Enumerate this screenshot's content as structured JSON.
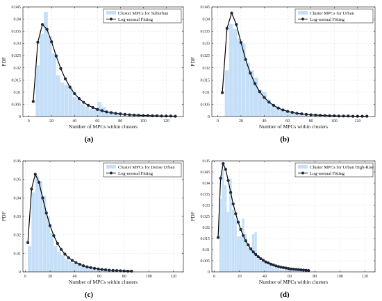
{
  "chart_data": [
    {
      "type": "bar+line",
      "caption": "(a)",
      "xlabel": "Number of MPCs within clusters",
      "ylabel": "PDF",
      "xlim": [
        -5,
        135
      ],
      "ylim": [
        0,
        0.045
      ],
      "xticks": [
        0,
        20,
        40,
        60,
        80,
        100,
        120
      ],
      "yticks": [
        0,
        0.005,
        0.01,
        0.015,
        0.02,
        0.025,
        0.03,
        0.035,
        0.04,
        0.045
      ],
      "grid": true,
      "legend_position": "top-right",
      "series": [
        {
          "name": "Cluster MPCs for Suburban",
          "kind": "hist",
          "bin_width": 3.6,
          "bin_starts": [
            2.5,
            6.1,
            9.7,
            13.3,
            16.9,
            20.5,
            24.1,
            27.7,
            31.3,
            34.9,
            38.5,
            42.1,
            45.7,
            49.3,
            52.9,
            56.5,
            60.1,
            63.7,
            67.3,
            70.9,
            74.5,
            78.1,
            81.7,
            85.3,
            88.9,
            92.5,
            96.1,
            99.7,
            103.3,
            106.9,
            110.5,
            114.1,
            117.7,
            121.3,
            124.9
          ],
          "values": [
            0.0,
            0.021,
            0.034,
            0.043,
            0.033,
            0.026,
            0.017,
            0.014,
            0.013,
            0.012,
            0.008,
            0.007,
            0.005,
            0.004,
            0.003,
            0.003,
            0.006,
            0.004,
            0.002,
            0.0015,
            0.001,
            0.001,
            0.0008,
            0.0006,
            0.0005,
            0.0004,
            0.0003,
            0.0003,
            0.0002,
            0.0002,
            0.0001,
            0.0001,
            0.0001,
            0.0001,
            0.0001
          ]
        },
        {
          "name": "Log-normal Fitting",
          "kind": "line",
          "x": [
            4,
            8,
            12,
            16,
            20,
            24,
            28,
            32,
            36,
            40,
            44,
            48,
            52,
            56,
            60,
            64,
            68,
            72,
            76,
            80,
            84,
            88,
            92,
            96,
            100,
            104,
            108,
            112,
            116,
            120,
            124,
            128
          ],
          "y": [
            0.0062,
            0.0305,
            0.0378,
            0.0358,
            0.0307,
            0.0249,
            0.0197,
            0.0155,
            0.0121,
            0.0094,
            0.0074,
            0.0058,
            0.0046,
            0.0037,
            0.0029,
            0.0024,
            0.0019,
            0.0016,
            0.0013,
            0.0011,
            0.0009,
            0.0007,
            0.0006,
            0.0005,
            0.0004,
            0.0004,
            0.0003,
            0.0003,
            0.0002,
            0.0002,
            0.0002,
            0.0001
          ]
        }
      ]
    },
    {
      "type": "bar+line",
      "caption": "(b)",
      "xlabel": "Number of MPCs within clusters",
      "ylabel": "PDF",
      "xlim": [
        -5,
        135
      ],
      "ylim": [
        0,
        0.045
      ],
      "xticks": [
        0,
        20,
        40,
        60,
        80,
        100,
        120
      ],
      "yticks": [
        0,
        0.005,
        0.01,
        0.015,
        0.02,
        0.025,
        0.03,
        0.035,
        0.04,
        0.045
      ],
      "grid": true,
      "legend_position": "top-right",
      "series": [
        {
          "name": "Cluster MPCs for Urban",
          "kind": "hist",
          "bin_width": 3.6,
          "bin_starts": [
            2.5,
            6.1,
            9.7,
            13.3,
            16.9,
            20.5,
            24.1,
            27.7,
            31.3,
            34.9,
            38.5,
            42.1,
            45.7,
            49.3,
            52.9,
            56.5,
            60.1,
            63.7,
            67.3,
            70.9,
            74.5,
            78.1,
            81.7,
            85.3,
            88.9,
            92.5,
            96.1,
            99.7,
            103.3,
            106.9,
            110.5,
            114.1,
            117.7,
            121.3
          ],
          "values": [
            0.0,
            0.019,
            0.038,
            0.036,
            0.032,
            0.03,
            0.022,
            0.019,
            0.016,
            0.011,
            0.01,
            0.007,
            0.005,
            0.004,
            0.003,
            0.002,
            0.002,
            0.0015,
            0.001,
            0.001,
            0.0008,
            0.0006,
            0.0005,
            0.0004,
            0.0003,
            0.0003,
            0.0002,
            0.0002,
            0.0001,
            0.0001,
            0.0001,
            0.0001,
            0.0001,
            0.0001
          ]
        },
        {
          "name": "Log-normal Fitting",
          "kind": "line",
          "x": [
            4,
            8,
            12,
            16,
            20,
            24,
            28,
            32,
            36,
            40,
            44,
            48,
            52,
            56,
            60,
            64,
            68,
            72,
            76,
            80,
            84,
            88,
            92,
            96,
            100,
            104,
            108,
            112,
            116,
            120,
            124,
            128
          ],
          "y": [
            0.0098,
            0.0362,
            0.0425,
            0.0378,
            0.0304,
            0.0234,
            0.0178,
            0.0135,
            0.0102,
            0.0078,
            0.0059,
            0.0046,
            0.0035,
            0.0027,
            0.0021,
            0.0017,
            0.0013,
            0.0011,
            0.0009,
            0.0007,
            0.0006,
            0.0005,
            0.0004,
            0.0003,
            0.0003,
            0.0002,
            0.0002,
            0.0002,
            0.0001,
            0.0001,
            0.0001,
            0.0001
          ]
        }
      ]
    },
    {
      "type": "bar+line",
      "caption": "(c)",
      "xlabel": "Number of MPCs within clusters",
      "ylabel": "PDF",
      "xlim": [
        -2,
        128
      ],
      "ylim": [
        0,
        0.06
      ],
      "xticks": [
        0,
        20,
        40,
        60,
        80,
        100,
        120
      ],
      "yticks": [
        0,
        0.01,
        0.02,
        0.03,
        0.04,
        0.05,
        0.06
      ],
      "grid": true,
      "legend_position": "top-right",
      "series": [
        {
          "name": "Cluster MPCs for Dense Urban",
          "kind": "hist",
          "bin_width": 3.0,
          "bin_starts": [
            2.0,
            5.0,
            8.0,
            11.0,
            14.0,
            17.0,
            20.0,
            23.0,
            26.0,
            29.0,
            32.0,
            35.0,
            38.0,
            41.0,
            44.0,
            47.0,
            50.0,
            53.0,
            56.0,
            59.0,
            62.0,
            65.0,
            68.0,
            71.0,
            74.0,
            77.0,
            80.0,
            83.0
          ],
          "values": [
            0.014,
            0.043,
            0.052,
            0.049,
            0.041,
            0.03,
            0.021,
            0.014,
            0.011,
            0.009,
            0.007,
            0.006,
            0.005,
            0.004,
            0.003,
            0.003,
            0.002,
            0.0015,
            0.001,
            0.001,
            0.0008,
            0.0006,
            0.0005,
            0.0004,
            0.0003,
            0.0002,
            0.0002,
            0.0001
          ]
        },
        {
          "name": "Log-normal Fitting",
          "kind": "line",
          "x": [
            2,
            5,
            8,
            11,
            14,
            17,
            20,
            23,
            26,
            29,
            32,
            35,
            38,
            41,
            44,
            47,
            50,
            53,
            56,
            59,
            62,
            65,
            68,
            71,
            74,
            77,
            80,
            83,
            86
          ],
          "y": [
            0.0158,
            0.0448,
            0.0528,
            0.0484,
            0.04,
            0.0318,
            0.025,
            0.0196,
            0.0154,
            0.0121,
            0.0096,
            0.0077,
            0.0062,
            0.005,
            0.0041,
            0.0033,
            0.0027,
            0.0023,
            0.0019,
            0.0016,
            0.0013,
            0.0011,
            0.0009,
            0.0008,
            0.0007,
            0.0006,
            0.0005,
            0.0004,
            0.0004
          ]
        }
      ]
    },
    {
      "type": "bar+line",
      "caption": "(d)",
      "xlabel": "Number of MPCs within clusters",
      "ylabel": "PDF",
      "xlim": [
        -2,
        128
      ],
      "ylim": [
        0,
        0.05
      ],
      "xticks": [
        0,
        20,
        40,
        60,
        80,
        100,
        120
      ],
      "yticks": [
        0,
        0.005,
        0.01,
        0.015,
        0.02,
        0.025,
        0.03,
        0.035,
        0.04,
        0.045,
        0.05
      ],
      "grid": true,
      "legend_position": "top-right",
      "series": [
        {
          "name": "Cluster MPCs for Urban High-Rise",
          "kind": "hist",
          "bin_width": 2.0,
          "bin_starts": [
            2,
            4,
            6,
            8,
            10,
            12,
            14,
            16,
            18,
            20,
            22,
            24,
            26,
            28,
            30,
            32,
            34,
            36,
            38,
            40,
            42,
            44,
            46,
            48,
            50,
            52,
            54,
            56,
            58,
            60,
            62,
            64,
            66,
            68,
            70,
            72,
            74
          ],
          "values": [
            0.0,
            0.033,
            0.046,
            0.039,
            0.027,
            0.042,
            0.028,
            0.024,
            0.016,
            0.016,
            0.024,
            0.017,
            0.011,
            0.01,
            0.017,
            0.018,
            0.006,
            0.005,
            0.005,
            0.004,
            0.003,
            0.003,
            0.002,
            0.002,
            0.0015,
            0.001,
            0.001,
            0.001,
            0.0008,
            0.0006,
            0.0005,
            0.0004,
            0.0003,
            0.0003,
            0.0002,
            0.0002,
            0.0001
          ]
        },
        {
          "name": "Log-normal Fitting",
          "kind": "line",
          "x": [
            3,
            5,
            7,
            9,
            11,
            13,
            15,
            17,
            19,
            21,
            23,
            25,
            27,
            29,
            31,
            33,
            35,
            37,
            39,
            41,
            43,
            45,
            47,
            49,
            51,
            53,
            55,
            57,
            59,
            61,
            63,
            65,
            67,
            69,
            71,
            73,
            75
          ],
          "y": [
            0.0155,
            0.0422,
            0.0488,
            0.0462,
            0.0412,
            0.0358,
            0.0306,
            0.0262,
            0.0224,
            0.0191,
            0.0164,
            0.014,
            0.0121,
            0.0104,
            0.009,
            0.0078,
            0.0068,
            0.0059,
            0.0052,
            0.0045,
            0.004,
            0.0035,
            0.0031,
            0.0027,
            0.0024,
            0.0021,
            0.0019,
            0.0017,
            0.0015,
            0.0013,
            0.0012,
            0.0011,
            0.001,
            0.0009,
            0.0008,
            0.0007,
            0.0006
          ]
        }
      ]
    }
  ],
  "colors": {
    "hist_fill": "#c5dff8",
    "fit_line": "#000000",
    "marker_fill": "#1f2d4a",
    "grid": "#dcdcdc",
    "axis": "#000000"
  }
}
